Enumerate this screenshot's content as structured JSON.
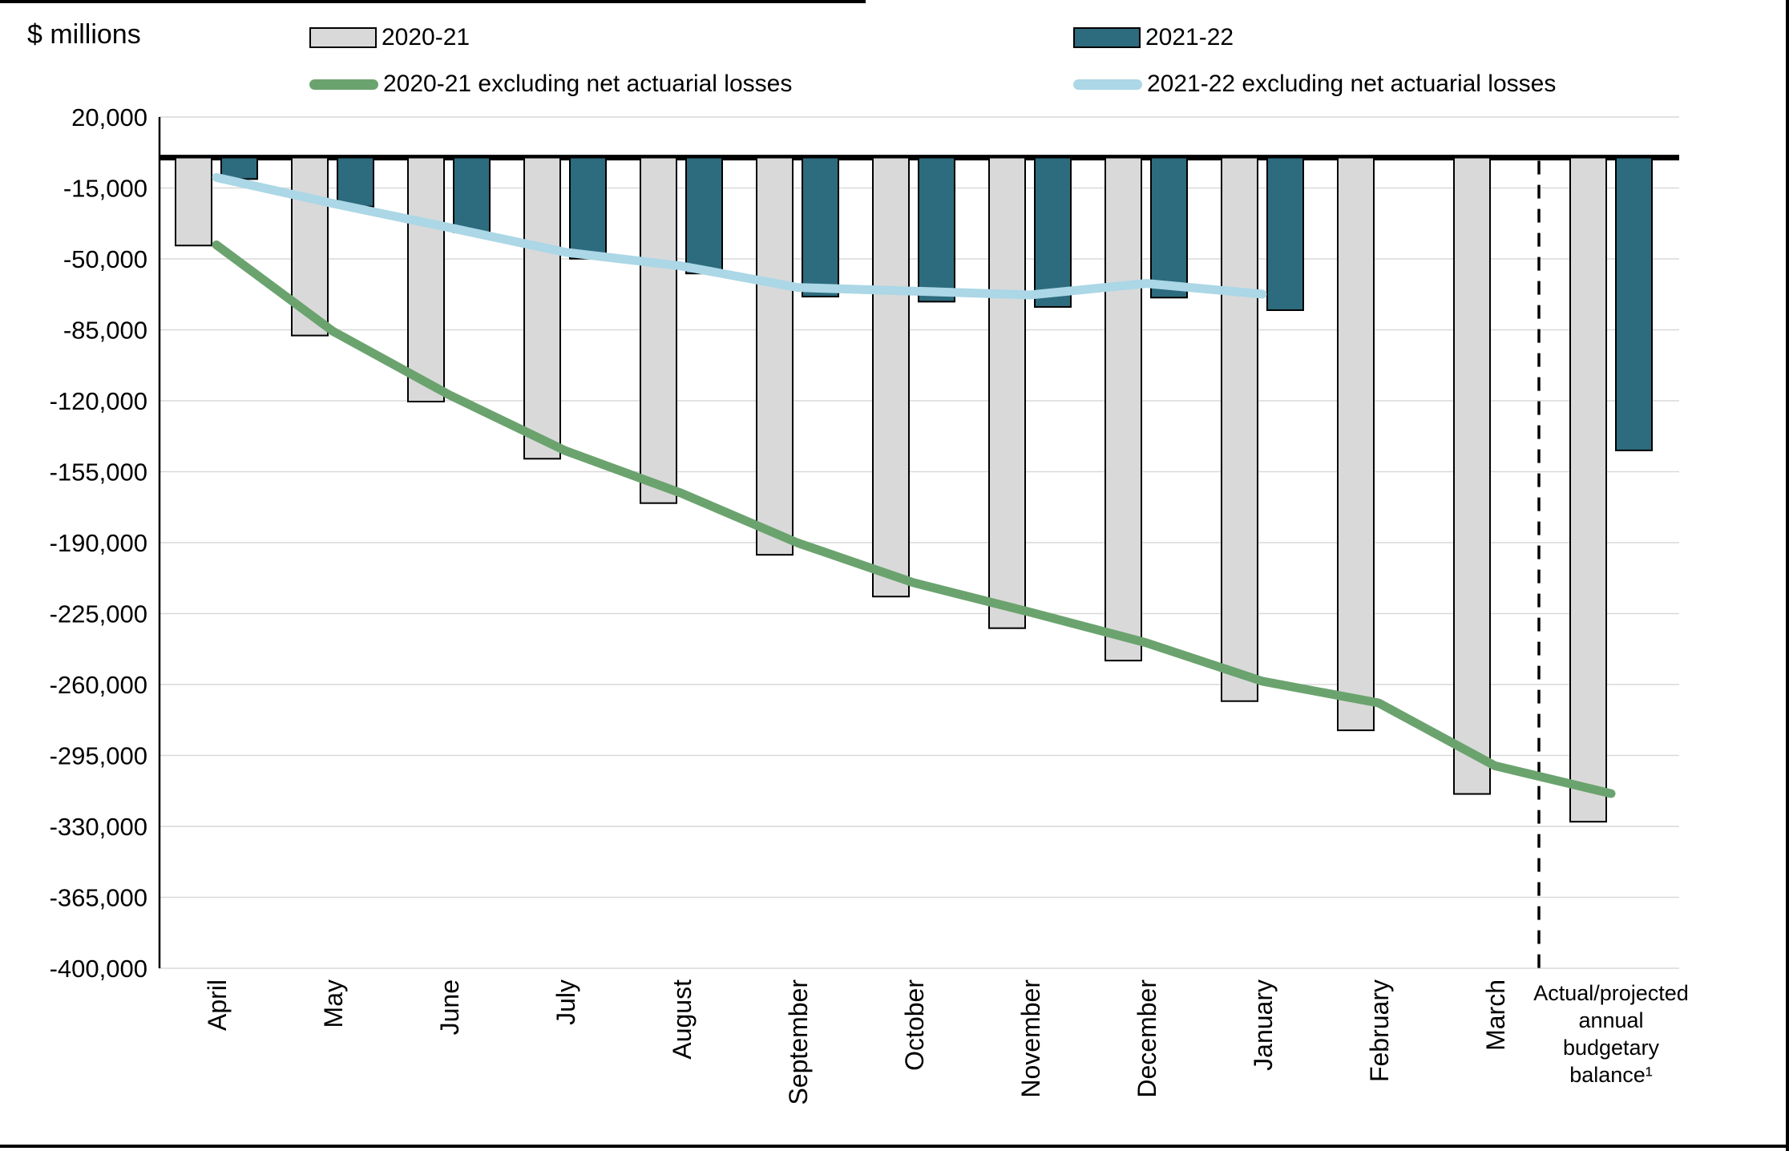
{
  "title": "$ millions",
  "legend": {
    "items": [
      {
        "label": "2020-21",
        "marker": "bar-swatch",
        "color": "#d9d9d9"
      },
      {
        "label": "2020-21 excluding net actuarial losses",
        "marker": "line-swatch",
        "color": "#6ba36e"
      },
      {
        "label": "2021-22",
        "marker": "bar-swatch",
        "color": "#2d6b7e"
      },
      {
        "label": "2021-22 excluding net actuarial losses",
        "marker": "line-swatch",
        "color": "#abd7e6"
      }
    ]
  },
  "chart_data": {
    "type": "bar",
    "subtype": "grouped bars with overlaid lines",
    "title": "$ millions",
    "xlabel": "",
    "ylabel": "$ millions",
    "ylim": [
      -400000,
      20000
    ],
    "y_tick_step": -35000,
    "grid": true,
    "legend_position": "top",
    "categories": [
      "April",
      "May",
      "June",
      "July",
      "August",
      "September",
      "October",
      "November",
      "December",
      "January",
      "February",
      "March",
      "Actual/projected annual budgetary balance¹"
    ],
    "last_category_label_lines": [
      "Actual/projected",
      "annual",
      "budgetary",
      "balance¹"
    ],
    "y_ticks": [
      20000,
      -15000,
      -50000,
      -85000,
      -120000,
      -155000,
      -190000,
      -225000,
      -260000,
      -295000,
      -330000,
      -365000,
      -400000
    ],
    "y_tick_labels": [
      "20,000",
      "-15,000",
      "-50,000",
      "-85,000",
      "-120,000",
      "-155,000",
      "-190,000",
      "-225,000",
      "-260,000",
      "-295,000",
      "-330,000",
      "-365,000",
      "-400,000"
    ],
    "series": [
      {
        "name": "2020-21",
        "type": "bar",
        "color": "#d9d9d9",
        "values": [
          -43400,
          -87800,
          -120400,
          -148600,
          -170500,
          -196000,
          -216600,
          -232200,
          -248200,
          -268200,
          -282600,
          -314000,
          -327700
        ]
      },
      {
        "name": "2021-22",
        "type": "bar",
        "color": "#2d6b7e",
        "values": [
          -10600,
          -24200,
          -36900,
          -49900,
          -57200,
          -68600,
          -71100,
          -73700,
          -69100,
          -75300,
          null,
          null,
          -144500
        ]
      },
      {
        "name": "2020-21 excluding net actuarial losses",
        "type": "line",
        "color": "#6ba36e",
        "values": [
          -43100,
          -85600,
          -117000,
          -144600,
          -165600,
          -190100,
          -209800,
          -224300,
          -239400,
          -258400,
          -269100,
          -300100,
          -313800
        ]
      },
      {
        "name": "2021-22 excluding net actuarial losses",
        "type": "line",
        "color": "#abd7e6",
        "values": [
          -9800,
          -22600,
          -34500,
          -46700,
          -53500,
          -64100,
          -65900,
          -67800,
          -62100,
          -67400,
          null,
          null,
          null
        ]
      }
    ],
    "annotations": {
      "zero_axis_line": "thick black horizontal line at 0",
      "dashed_separator_between": [
        "March",
        "Actual/projected annual budgetary balance¹"
      ]
    }
  },
  "colors": {
    "bar_2020_21": "#d9d9d9",
    "bar_2021_22": "#2d6b7e",
    "line_2020_21_excl": "#6ba36e",
    "line_2021_22_excl": "#abd7e6",
    "gridline": "#d9d9d9",
    "axis": "#000000"
  }
}
